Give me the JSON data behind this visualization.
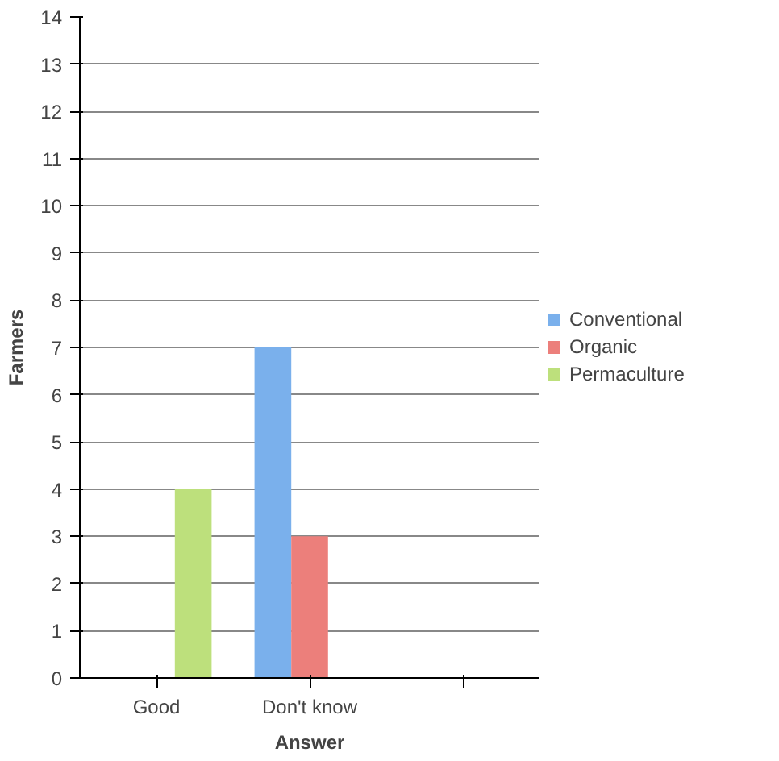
{
  "chart_data": {
    "type": "bar",
    "xlabel": "Answer",
    "ylabel": "Farmers",
    "categories": [
      "Good",
      "Don't know",
      null
    ],
    "series": [
      {
        "name": "Conventional",
        "color": "#7ab0ec",
        "values": [
          null,
          7,
          null
        ]
      },
      {
        "name": "Organic",
        "color": "#ec7f7b",
        "values": [
          null,
          3,
          null
        ]
      },
      {
        "name": "Permaculture",
        "color": "#bde07c",
        "values": [
          4,
          null,
          null
        ]
      }
    ],
    "ylim": [
      0,
      14
    ],
    "yticks": [
      0,
      1,
      2,
      3,
      4,
      5,
      6,
      7,
      8,
      9,
      10,
      11,
      12,
      13,
      14
    ],
    "grid": "y",
    "legend": "right"
  }
}
